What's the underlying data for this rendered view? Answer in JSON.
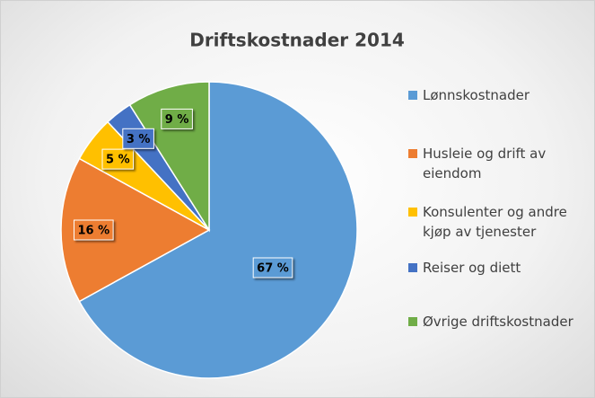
{
  "chart_data": {
    "type": "pie",
    "title": "Driftskostnader 2014",
    "categories": [
      "Lønnskostnader",
      "Husleie og drift av eiendom",
      "Konsulenter og andre kjøp av tjenester",
      "Reiser og diett",
      "Øvrige driftskostnader"
    ],
    "values": [
      67,
      16,
      5,
      3,
      9
    ],
    "value_labels": [
      "67 %",
      "16 %",
      "5 %",
      "3 %",
      "9 %"
    ],
    "colors": [
      "#5b9bd5",
      "#ed7d31",
      "#ffc000",
      "#4472c4",
      "#70ad47"
    ],
    "legend": "right"
  }
}
